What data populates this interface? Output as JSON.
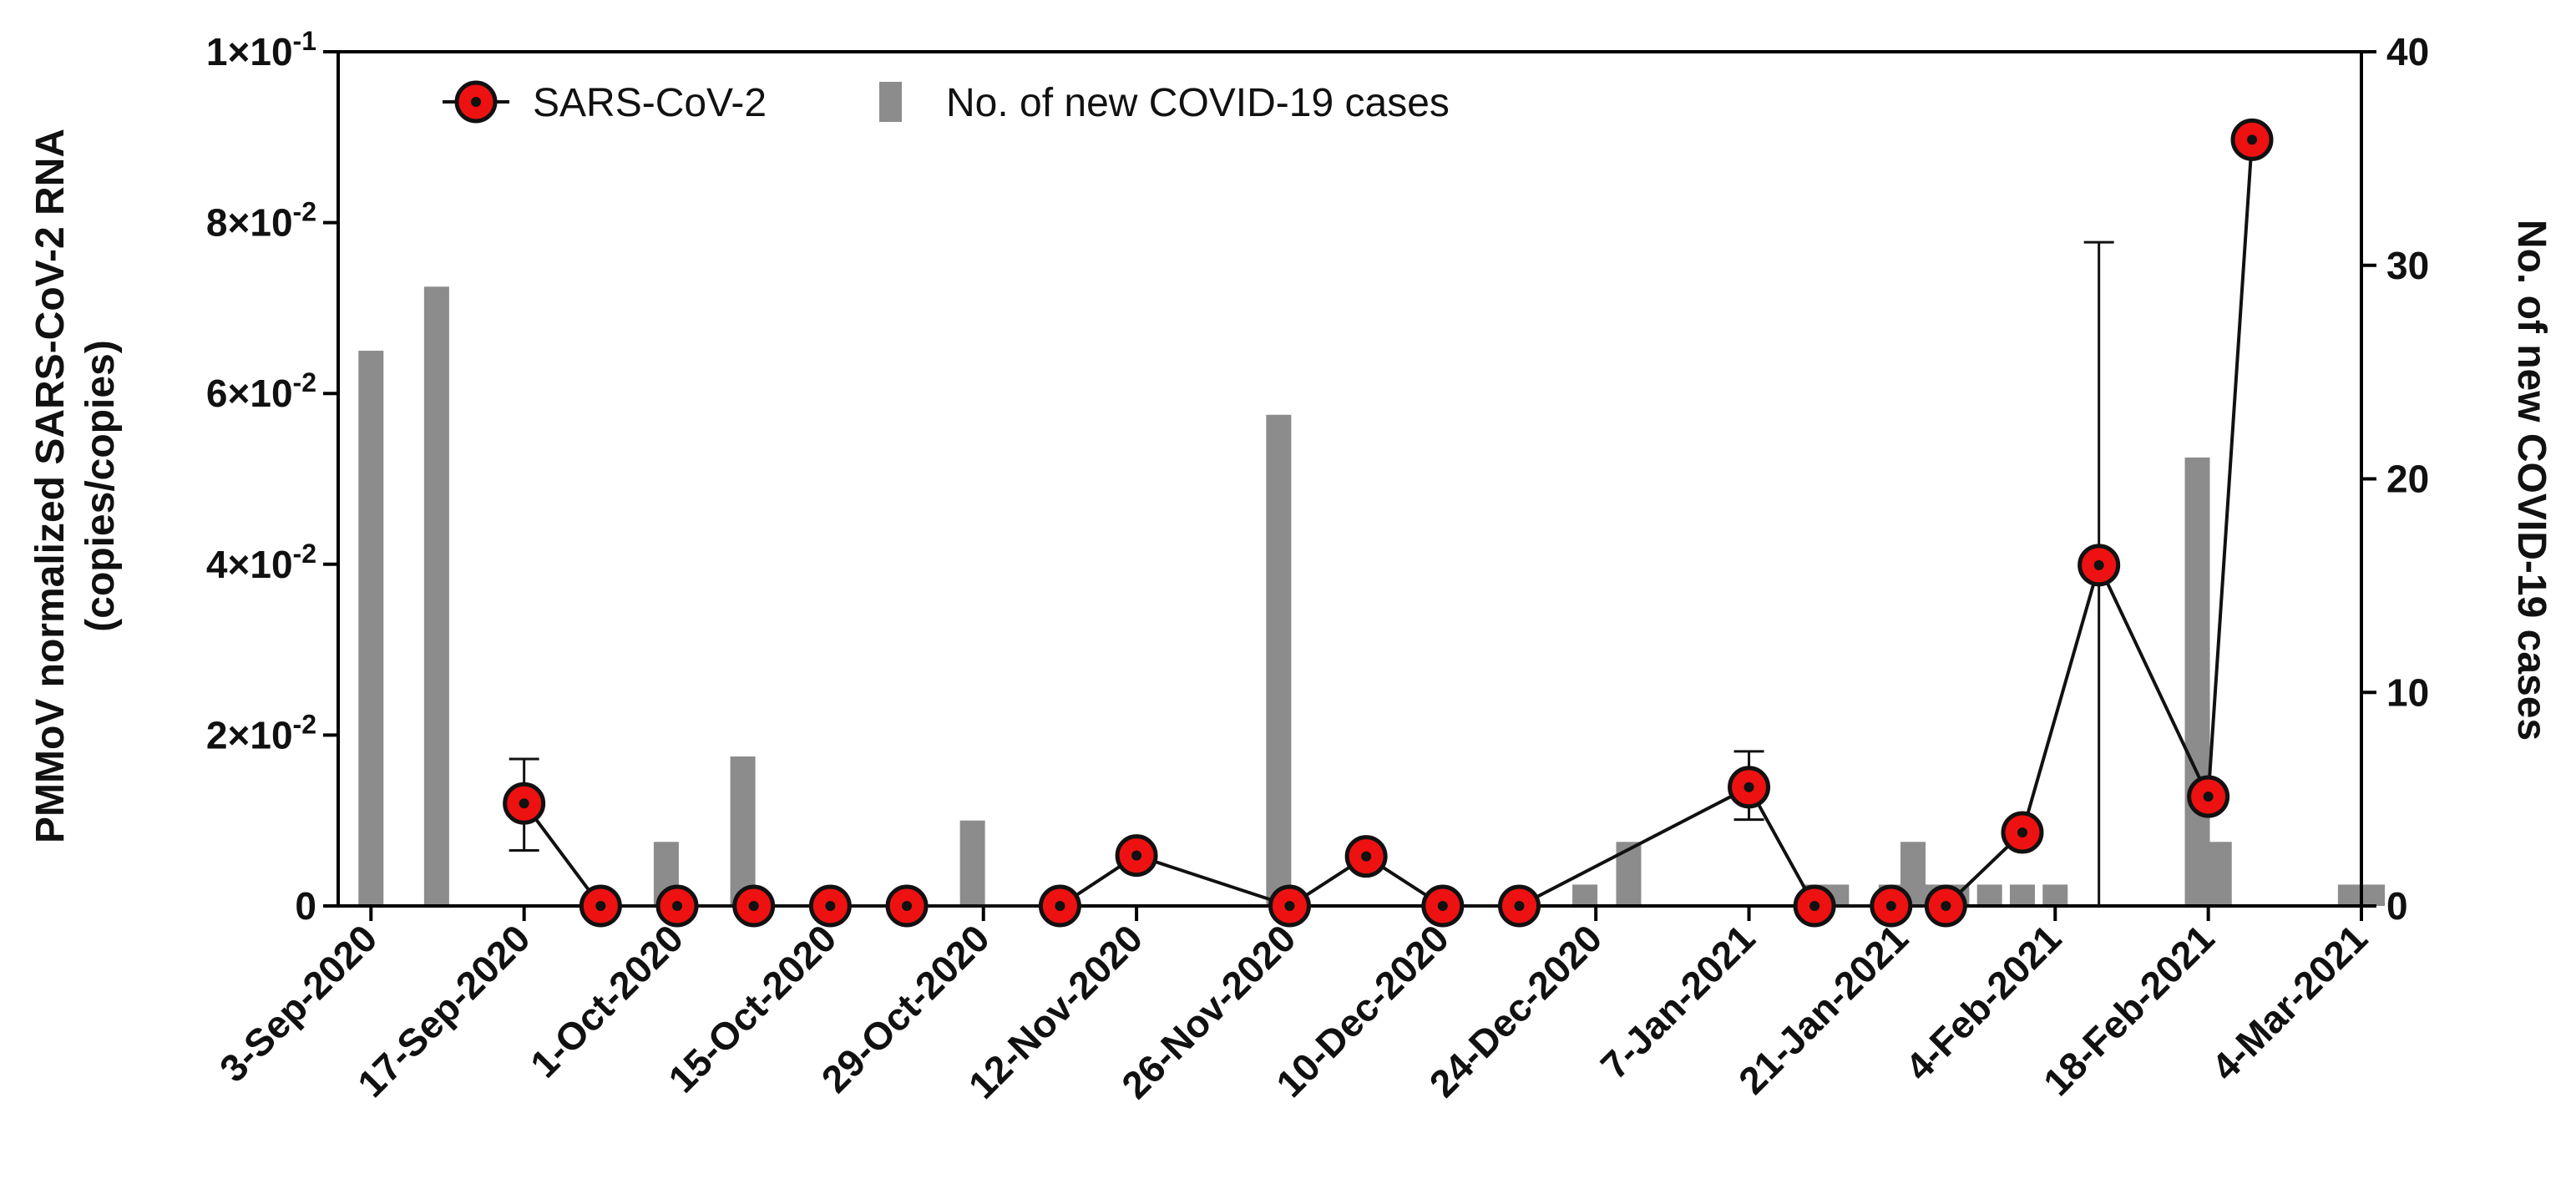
{
  "chart_data": {
    "type": "bar+line",
    "title": "",
    "left_axis": {
      "label_lines": [
        "PMMoV normalized SARS-CoV-2 RNA",
        "(copies/copies)"
      ],
      "ylim": [
        0,
        0.1
      ],
      "ticks": [
        0,
        0.02,
        0.04,
        0.06,
        0.08,
        0.1
      ],
      "tick_labels": [
        {
          "mantissa": "0",
          "exp": ""
        },
        {
          "mantissa": "2×10",
          "exp": "-2"
        },
        {
          "mantissa": "4×10",
          "exp": "-2"
        },
        {
          "mantissa": "6×10",
          "exp": "-2"
        },
        {
          "mantissa": "8×10",
          "exp": "-2"
        },
        {
          "mantissa": "1×10",
          "exp": "-1"
        }
      ]
    },
    "right_axis": {
      "label": "No. of new COVID-19 cases",
      "ylim": [
        0,
        40
      ],
      "ticks": [
        0,
        10,
        20,
        30,
        40
      ],
      "tick_labels": [
        "0",
        "10",
        "20",
        "30",
        "40"
      ]
    },
    "x_axis": {
      "label": "",
      "day_range": [
        -3,
        182
      ],
      "ticks": [
        {
          "day": 0,
          "label": "3-Sep-2020"
        },
        {
          "day": 14,
          "label": "17-Sep-2020"
        },
        {
          "day": 28,
          "label": "1-Oct-2020"
        },
        {
          "day": 42,
          "label": "15-Oct-2020"
        },
        {
          "day": 56,
          "label": "29-Oct-2020"
        },
        {
          "day": 70,
          "label": "12-Nov-2020"
        },
        {
          "day": 84,
          "label": "26-Nov-2020"
        },
        {
          "day": 98,
          "label": "10-Dec-2020"
        },
        {
          "day": 112,
          "label": "24-Dec-2020"
        },
        {
          "day": 126,
          "label": "7-Jan-2021"
        },
        {
          "day": 140,
          "label": "21-Jan-2021"
        },
        {
          "day": 154,
          "label": "4-Feb-2021"
        },
        {
          "day": 168,
          "label": "18-Feb-2021"
        },
        {
          "day": 182,
          "label": "4-Mar-2021"
        }
      ]
    },
    "legend": {
      "placement": "top-left",
      "entries": [
        {
          "name": "SARS-CoV-2",
          "kind": "line-marker"
        },
        {
          "name": "No. of new COVID-19 cases",
          "kind": "bar"
        }
      ]
    },
    "series": [
      {
        "name": "No. of new COVID-19 cases",
        "type": "bar",
        "axis": "right",
        "color": "#8c8c8c",
        "points": [
          {
            "day": 0,
            "value": 26
          },
          {
            "day": 6,
            "value": 29
          },
          {
            "day": 27,
            "value": 3
          },
          {
            "day": 34,
            "value": 7
          },
          {
            "day": 55,
            "value": 4
          },
          {
            "day": 83,
            "value": 23
          },
          {
            "day": 111,
            "value": 1
          },
          {
            "day": 115,
            "value": 3
          },
          {
            "day": 132,
            "value": 1
          },
          {
            "day": 134,
            "value": 1
          },
          {
            "day": 139,
            "value": 1
          },
          {
            "day": 141,
            "value": 3
          },
          {
            "day": 143,
            "value": 1
          },
          {
            "day": 145,
            "value": 1
          },
          {
            "day": 148,
            "value": 1
          },
          {
            "day": 151,
            "value": 1
          },
          {
            "day": 154,
            "value": 1
          },
          {
            "day": 167,
            "value": 21
          },
          {
            "day": 169,
            "value": 3
          },
          {
            "day": 181,
            "value": 1
          },
          {
            "day": 183,
            "value": 1
          }
        ]
      },
      {
        "name": "SARS-CoV-2",
        "type": "line",
        "axis": "left",
        "color": "#ee1111",
        "points": [
          {
            "day": 14,
            "value": 0.012,
            "err_low": 0.0065,
            "err_high": 0.0172
          },
          {
            "day": 21,
            "value": 0
          },
          {
            "day": 28,
            "value": 0
          },
          {
            "day": 35,
            "value": 0
          },
          {
            "day": 42,
            "value": 0
          },
          {
            "day": 49,
            "value": 0
          },
          {
            "day": 63,
            "value": 0
          },
          {
            "day": 70,
            "value": 0.0059
          },
          {
            "day": 84,
            "value": 0
          },
          {
            "day": 91,
            "value": 0.0058
          },
          {
            "day": 98,
            "value": 0
          },
          {
            "day": 105,
            "value": 0
          },
          {
            "day": 126,
            "value": 0.0139,
            "err_low": 0.0101,
            "err_high": 0.0181
          },
          {
            "day": 132,
            "value": 0
          },
          {
            "day": 139,
            "value": 0
          },
          {
            "day": 144,
            "value": 0
          },
          {
            "day": 151,
            "value": 0.0086
          },
          {
            "day": 158,
            "value": 0.0399,
            "err_low": 0,
            "err_high": 0.0777
          },
          {
            "day": 168,
            "value": 0.0128
          },
          {
            "day": 172,
            "value": 0.0897
          }
        ]
      }
    ]
  }
}
